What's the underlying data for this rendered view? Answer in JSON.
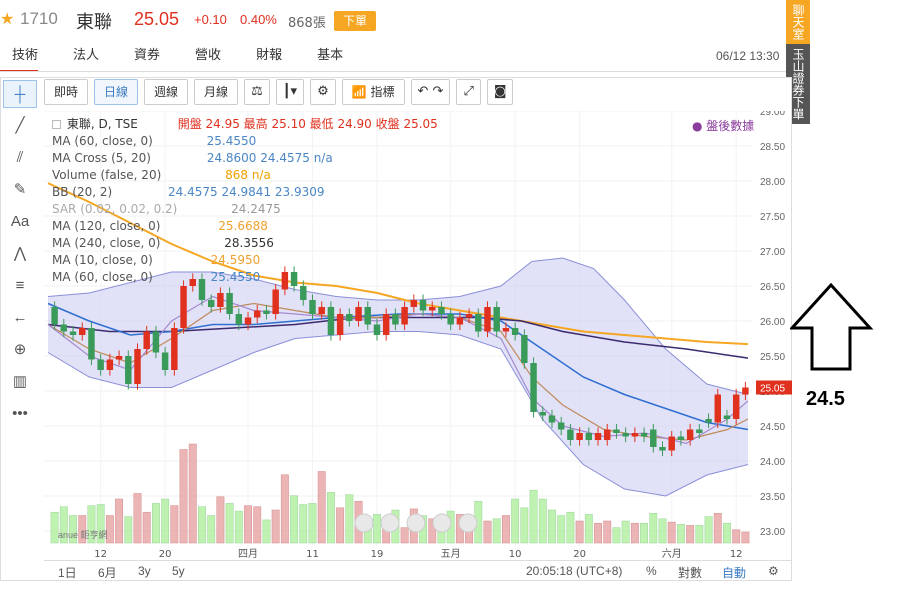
{
  "header": {
    "star": "★",
    "code": "1710",
    "name": "東聯",
    "price": "25.05",
    "change": "+0.10",
    "change_pct": "0.40%",
    "volume": "868張",
    "order_button": "下單",
    "datetime": "06/12 13:30"
  },
  "nav": [
    "技術",
    "法人",
    "資券",
    "營收",
    "財報",
    "基本"
  ],
  "side": {
    "chat": "聊天室",
    "order": "玉山證券下單"
  },
  "toolbar": {
    "buttons": [
      "即時",
      "日線",
      "週線",
      "月線",
      "指標"
    ],
    "active": "日線"
  },
  "legend": {
    "title": "東聯, D, TSE",
    "ohlc": "開盤 24.95 最高 25.10 最低 24.90 收盤 25.05",
    "rows": [
      {
        "label": "MA (60, close, 0)",
        "value": "25.4550",
        "color": "#4a86c5"
      },
      {
        "label": "MA Cross (5, 20)",
        "value": "24.8600 24.4575 n/a",
        "color": "#4a86c5"
      },
      {
        "label": "Volume (false, 20)",
        "value": "868 n/a",
        "color": "#f0a000"
      },
      {
        "label": "BB (20, 2)",
        "value": "24.4575 24.9841 23.9309",
        "color": "#4a86c5"
      },
      {
        "label": "SAR (0.02, 0.02, 0.2)",
        "value": "24.2475",
        "color": "#999999"
      },
      {
        "label": "MA (120, close, 0)",
        "value": "25.6688",
        "color": "#f0a030"
      },
      {
        "label": "MA (240, close, 0)",
        "value": "28.3556",
        "color": "#333333"
      },
      {
        "label": "MA (10, close, 0)",
        "value": "24.5950",
        "color": "#f0a030"
      },
      {
        "label": "MA (60, close, 0)",
        "value": "25.4550",
        "color": "#4a86c5"
      }
    ],
    "after_hours": "● 盤後數據"
  },
  "chart_data": {
    "type": "line",
    "subtype": "candlestick",
    "title": "東聯, D, TSE",
    "y_axis": {
      "min": 23.0,
      "max": 29.0,
      "ticks": [
        "29.00",
        "28.50",
        "28.00",
        "27.50",
        "27.00",
        "26.50",
        "26.00",
        "25.50",
        "25.00",
        "24.50",
        "24.00",
        "23.50",
        "23.00"
      ]
    },
    "x_axis": {
      "ticks": [
        "12",
        "20",
        "四月",
        "11",
        "19",
        "五月",
        "10",
        "20",
        "六月",
        "12"
      ]
    },
    "last_price_label": "25.05",
    "candles": [
      {
        "o": 26.2,
        "c": 25.95
      },
      {
        "o": 25.95,
        "c": 25.85
      },
      {
        "o": 25.85,
        "c": 25.8
      },
      {
        "o": 25.8,
        "c": 25.9
      },
      {
        "o": 25.9,
        "c": 25.45
      },
      {
        "o": 25.45,
        "c": 25.3
      },
      {
        "o": 25.3,
        "c": 25.45
      },
      {
        "o": 25.45,
        "c": 25.5
      },
      {
        "o": 25.5,
        "c": 25.1
      },
      {
        "o": 25.1,
        "c": 25.6
      },
      {
        "o": 25.6,
        "c": 25.85
      },
      {
        "o": 25.85,
        "c": 25.55
      },
      {
        "o": 25.55,
        "c": 25.3
      },
      {
        "o": 25.3,
        "c": 25.9
      },
      {
        "o": 25.9,
        "c": 26.5
      },
      {
        "o": 26.5,
        "c": 26.6
      },
      {
        "o": 26.6,
        "c": 26.3
      },
      {
        "o": 26.3,
        "c": 26.2
      },
      {
        "o": 26.2,
        "c": 26.4
      },
      {
        "o": 26.4,
        "c": 26.1
      },
      {
        "o": 26.1,
        "c": 25.95
      },
      {
        "o": 25.95,
        "c": 26.05
      },
      {
        "o": 26.05,
        "c": 26.15
      },
      {
        "o": 26.15,
        "c": 26.1
      },
      {
        "o": 26.1,
        "c": 26.45
      },
      {
        "o": 26.45,
        "c": 26.7
      },
      {
        "o": 26.7,
        "c": 26.5
      },
      {
        "o": 26.5,
        "c": 26.3
      },
      {
        "o": 26.3,
        "c": 26.1
      },
      {
        "o": 26.1,
        "c": 26.2
      },
      {
        "o": 26.2,
        "c": 25.8
      },
      {
        "o": 25.8,
        "c": 26.1
      },
      {
        "o": 26.1,
        "c": 26.0
      },
      {
        "o": 26.0,
        "c": 26.2
      },
      {
        "o": 26.2,
        "c": 25.95
      },
      {
        "o": 25.95,
        "c": 25.8
      },
      {
        "o": 25.8,
        "c": 26.1
      },
      {
        "o": 26.1,
        "c": 25.95
      },
      {
        "o": 25.95,
        "c": 26.2
      },
      {
        "o": 26.2,
        "c": 26.3
      },
      {
        "o": 26.3,
        "c": 26.15
      },
      {
        "o": 26.15,
        "c": 26.2
      },
      {
        "o": 26.2,
        "c": 26.1
      },
      {
        "o": 26.1,
        "c": 25.95
      },
      {
        "o": 25.95,
        "c": 26.05
      },
      {
        "o": 26.05,
        "c": 26.1
      },
      {
        "o": 26.1,
        "c": 25.85
      },
      {
        "o": 25.85,
        "c": 26.2
      },
      {
        "o": 26.2,
        "c": 25.85
      },
      {
        "o": 25.85,
        "c": 25.9
      },
      {
        "o": 25.9,
        "c": 25.8
      },
      {
        "o": 25.8,
        "c": 25.4
      },
      {
        "o": 25.4,
        "c": 24.7
      },
      {
        "o": 24.7,
        "c": 24.65
      },
      {
        "o": 24.65,
        "c": 24.55
      },
      {
        "o": 24.55,
        "c": 24.45
      },
      {
        "o": 24.45,
        "c": 24.3
      },
      {
        "o": 24.3,
        "c": 24.4
      },
      {
        "o": 24.4,
        "c": 24.3
      },
      {
        "o": 24.3,
        "c": 24.4
      },
      {
        "o": 24.3,
        "c": 24.45
      },
      {
        "o": 24.45,
        "c": 24.4
      },
      {
        "o": 24.4,
        "c": 24.35
      },
      {
        "o": 24.35,
        "c": 24.4
      },
      {
        "o": 24.4,
        "c": 24.35
      },
      {
        "o": 24.45,
        "c": 24.2
      },
      {
        "o": 24.2,
        "c": 24.15
      },
      {
        "o": 24.15,
        "c": 24.35
      },
      {
        "o": 24.35,
        "c": 24.3
      },
      {
        "o": 24.3,
        "c": 24.45
      },
      {
        "o": 24.45,
        "c": 24.4
      },
      {
        "o": 24.6,
        "c": 24.55
      },
      {
        "o": 24.55,
        "c": 24.95
      },
      {
        "o": 24.65,
        "c": 24.6
      },
      {
        "o": 24.6,
        "c": 24.95
      },
      {
        "o": 24.95,
        "c": 25.05
      }
    ],
    "volume": [
      28,
      33,
      25,
      25,
      34,
      35,
      25,
      40,
      24,
      45,
      28,
      36,
      40,
      34,
      85,
      90,
      33,
      25,
      42,
      36,
      29,
      34,
      33,
      21,
      30,
      62,
      43,
      35,
      36,
      65,
      46,
      32,
      44,
      38,
      18,
      26,
      22,
      30,
      14,
      31,
      25,
      22,
      20,
      29,
      26,
      18,
      38,
      20,
      22,
      25,
      40,
      32,
      48,
      40,
      30,
      25,
      28,
      20,
      26,
      18,
      20,
      14,
      20,
      18,
      18,
      27,
      22,
      19,
      17,
      16,
      16,
      24,
      27,
      18,
      12,
      10
    ],
    "ma_orange_120": [
      [
        0,
        27.97
      ],
      [
        40,
        27.7
      ],
      [
        80,
        27.4
      ],
      [
        120,
        27.1
      ],
      [
        160,
        26.85
      ],
      [
        200,
        26.65
      ],
      [
        240,
        26.55
      ],
      [
        280,
        26.5
      ],
      [
        320,
        26.4
      ],
      [
        360,
        26.25
      ],
      [
        400,
        26.15
      ],
      [
        440,
        26.05
      ],
      [
        480,
        25.95
      ],
      [
        520,
        25.85
      ],
      [
        560,
        25.8
      ],
      [
        600,
        25.75
      ],
      [
        640,
        25.7
      ],
      [
        680,
        25.67
      ]
    ],
    "ma_purple": [
      [
        0,
        25.95
      ],
      [
        60,
        25.85
      ],
      [
        120,
        25.85
      ],
      [
        180,
        25.9
      ],
      [
        240,
        25.95
      ],
      [
        300,
        26.05
      ],
      [
        360,
        26.05
      ],
      [
        420,
        26.05
      ],
      [
        460,
        26.0
      ],
      [
        500,
        25.85
      ],
      [
        560,
        25.7
      ],
      [
        620,
        25.6
      ],
      [
        680,
        25.47
      ]
    ],
    "ma_blue": [
      [
        0,
        26.25
      ],
      [
        40,
        26.0
      ],
      [
        80,
        25.8
      ],
      [
        120,
        25.85
      ],
      [
        160,
        25.95
      ],
      [
        200,
        25.95
      ],
      [
        240,
        26.0
      ],
      [
        280,
        26.05
      ],
      [
        340,
        26.1
      ],
      [
        400,
        26.1
      ],
      [
        440,
        26.0
      ],
      [
        480,
        25.6
      ],
      [
        520,
        25.2
      ],
      [
        560,
        24.95
      ],
      [
        600,
        24.75
      ],
      [
        640,
        24.55
      ],
      [
        680,
        24.45
      ]
    ],
    "bb_upper": [
      [
        0,
        26.35
      ],
      [
        40,
        26.4
      ],
      [
        80,
        26.55
      ],
      [
        120,
        26.7
      ],
      [
        160,
        26.7
      ],
      [
        200,
        26.6
      ],
      [
        240,
        26.45
      ],
      [
        280,
        26.35
      ],
      [
        320,
        26.3
      ],
      [
        360,
        26.3
      ],
      [
        400,
        26.35
      ],
      [
        440,
        26.5
      ],
      [
        470,
        26.85
      ],
      [
        500,
        26.9
      ],
      [
        530,
        26.75
      ],
      [
        560,
        26.3
      ],
      [
        600,
        25.6
      ],
      [
        640,
        25.1
      ],
      [
        680,
        24.95
      ]
    ],
    "bb_lower": [
      [
        0,
        25.55
      ],
      [
        40,
        25.2
      ],
      [
        80,
        25.05
      ],
      [
        120,
        25.05
      ],
      [
        160,
        25.3
      ],
      [
        200,
        25.55
      ],
      [
        240,
        25.75
      ],
      [
        280,
        25.8
      ],
      [
        320,
        25.85
      ],
      [
        360,
        25.85
      ],
      [
        400,
        25.8
      ],
      [
        440,
        25.6
      ],
      [
        480,
        24.6
      ],
      [
        520,
        23.95
      ],
      [
        560,
        23.6
      ],
      [
        600,
        23.5
      ],
      [
        640,
        23.8
      ],
      [
        680,
        23.95
      ]
    ],
    "ma_brown_10": [
      [
        0,
        25.95
      ],
      [
        40,
        25.6
      ],
      [
        80,
        25.4
      ],
      [
        120,
        25.75
      ],
      [
        160,
        26.15
      ],
      [
        200,
        26.25
      ],
      [
        240,
        26.15
      ],
      [
        280,
        26.05
      ],
      [
        320,
        26.05
      ],
      [
        360,
        26.1
      ],
      [
        400,
        26.05
      ],
      [
        440,
        25.85
      ],
      [
        470,
        25.2
      ],
      [
        500,
        24.8
      ],
      [
        540,
        24.45
      ],
      [
        580,
        24.35
      ],
      [
        620,
        24.3
      ],
      [
        660,
        24.45
      ],
      [
        680,
        24.6
      ]
    ],
    "ma_lavender_5": [
      [
        0,
        25.95
      ],
      [
        40,
        25.5
      ],
      [
        80,
        25.3
      ],
      [
        120,
        26.0
      ],
      [
        160,
        26.35
      ],
      [
        200,
        26.15
      ],
      [
        240,
        26.1
      ],
      [
        280,
        26.05
      ],
      [
        320,
        26.0
      ],
      [
        360,
        26.1
      ],
      [
        400,
        26.05
      ],
      [
        440,
        25.75
      ],
      [
        470,
        24.9
      ],
      [
        500,
        24.5
      ],
      [
        540,
        24.35
      ],
      [
        580,
        24.4
      ],
      [
        620,
        24.25
      ],
      [
        660,
        24.6
      ],
      [
        680,
        24.86
      ]
    ]
  },
  "bottom": {
    "ranges": [
      "1日",
      "6月",
      "3y",
      "5y"
    ],
    "clock": "20:05:18 (UTC+8)",
    "pct": "%",
    "log": "對數",
    "auto": "自動",
    "gear": "⚙"
  },
  "watermark": "anue 鉅亨網",
  "annotation": {
    "label": "24.5"
  }
}
